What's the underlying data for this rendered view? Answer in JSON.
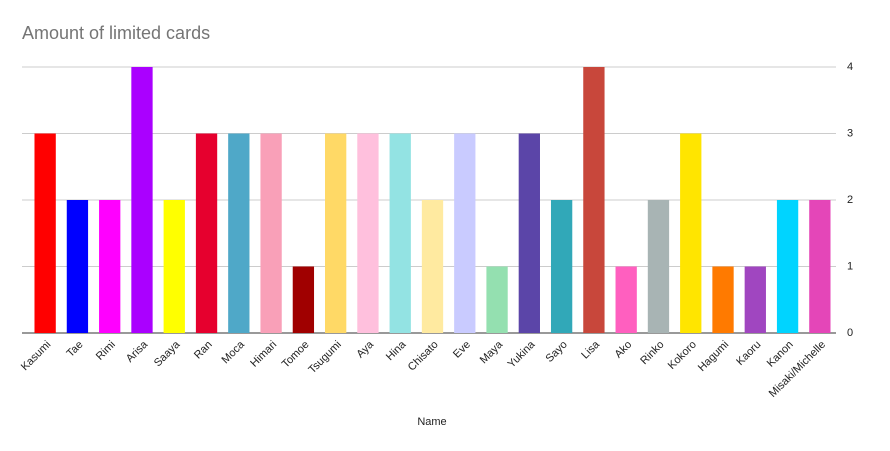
{
  "chart_data": {
    "type": "bar",
    "title": "Amount of limited cards",
    "x_label": "Name",
    "categories": [
      "Kasumi",
      "Tae",
      "Rimi",
      "Arisa",
      "Saaya",
      "Ran",
      "Moca",
      "Himari",
      "Tomoe",
      "Tsugumi",
      "Aya",
      "Hina",
      "Chisato",
      "Eve",
      "Maya",
      "Yukina",
      "Sayo",
      "Lisa",
      "Ako",
      "Rinko",
      "Kokoro",
      "Hagumi",
      "Kaoru",
      "Kanon",
      "Misaki/Michelle"
    ],
    "values": [
      3,
      2,
      2,
      4,
      2,
      3,
      3,
      3,
      1,
      3,
      3,
      3,
      2,
      3,
      1,
      3,
      2,
      4,
      1,
      2,
      3,
      1,
      1,
      2,
      2
    ],
    "colors": [
      "#ff0000",
      "#0000ff",
      "#ff00ff",
      "#aa00ff",
      "#ffff00",
      "#e6002e",
      "#4fa8c8",
      "#f9a0b8",
      "#a00000",
      "#ffd966",
      "#ffc0dd",
      "#93e3e3",
      "#ffeaa0",
      "#c9cbff",
      "#94e0b0",
      "#5b45a8",
      "#31a8b8",
      "#c8473b",
      "#ff5fbf",
      "#a8b4b4",
      "#ffe500",
      "#ff7a00",
      "#a046c0",
      "#00d4ff",
      "#e446b8"
    ],
    "ylim": [
      0,
      4
    ],
    "yticks": [
      0,
      1,
      2,
      3,
      4
    ],
    "grid": true,
    "y_axis_side": "right"
  }
}
